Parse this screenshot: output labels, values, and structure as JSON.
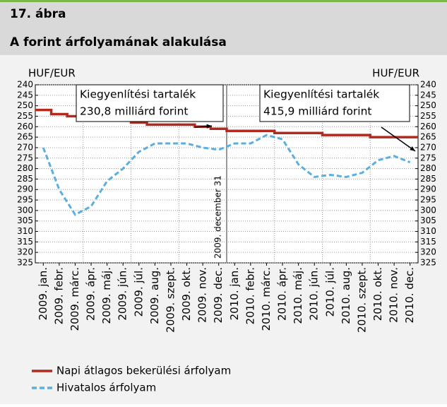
{
  "chart_data": {
    "type": "line",
    "figure_label": "17. ábra",
    "title": "A forint árfolyamának alakulása",
    "ylabel": "HUF/EUR",
    "y2label": "HUF/EUR",
    "categories": [
      "2009. jan.",
      "2009. febr.",
      "2009. márc.",
      "2009. ápr.",
      "2009. máj.",
      "2009. jún.",
      "2009. júl.",
      "2009. aug.",
      "2009. szept.",
      "2009. okt.",
      "2009. nov.",
      "2009. dec.",
      "2010. jan.",
      "2010. febr.",
      "2010. márc.",
      "2010. ápr.",
      "2010. máj.",
      "2010. jún.",
      "2010. júl.",
      "2010. aug.",
      "2010. szept.",
      "2010. okt.",
      "2010. nov.",
      "2010. dec."
    ],
    "series": [
      {
        "name": "Napi átlagos bekerülési árfolyam",
        "color": "#b22a1e",
        "style": "step",
        "values": [
          252,
          254,
          255,
          255,
          256,
          257,
          258,
          259,
          259,
          259,
          260,
          261,
          262,
          262,
          262,
          263,
          263,
          263,
          264,
          264,
          264,
          265,
          265,
          265
        ]
      },
      {
        "name": "Hivatalos árfolyam",
        "color": "#5aaee0",
        "style": "dashed",
        "values": [
          270,
          290,
          302,
          298,
          286,
          280,
          272,
          268,
          268,
          268,
          270,
          271,
          268,
          268,
          264,
          266,
          278,
          284,
          283,
          284,
          282,
          276,
          274,
          277
        ]
      }
    ],
    "ylim": [
      240,
      325
    ],
    "y2lim": [
      240,
      325
    ],
    "inverted": true,
    "yticks": [
      240,
      245,
      250,
      255,
      260,
      265,
      270,
      275,
      280,
      285,
      290,
      295,
      300,
      305,
      310,
      315,
      320,
      325
    ],
    "y2ticks": [
      240,
      245,
      250,
      255,
      260,
      265,
      270,
      275,
      280,
      285,
      290,
      295,
      300,
      305,
      310,
      315,
      320,
      325
    ],
    "grid": true,
    "annotations": [
      {
        "lines": [
          "Kiegyenlítési tartalék",
          "230,8 milliárd forint"
        ]
      },
      {
        "lines": [
          "Kiegyenlítési tartalék",
          "415,9 milliárd forint"
        ]
      }
    ],
    "vline_label": "2009. december 31"
  }
}
